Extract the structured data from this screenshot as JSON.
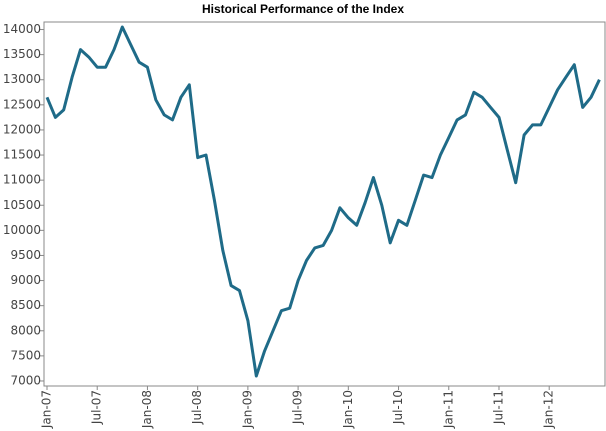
{
  "chart_data": {
    "type": "line",
    "title": "Historical Performance of the Index",
    "x": [
      "Jan-07",
      null,
      null,
      null,
      null,
      null,
      "Jul-07",
      null,
      null,
      null,
      null,
      null,
      "Jan-08",
      null,
      null,
      null,
      null,
      null,
      "Jul-08",
      null,
      null,
      null,
      null,
      null,
      "Jan-09",
      null,
      null,
      null,
      null,
      null,
      "Jul-09",
      null,
      null,
      null,
      null,
      null,
      "Jan-10",
      null,
      null,
      null,
      null,
      null,
      "Jul-10",
      null,
      null,
      null,
      null,
      null,
      "Jan-11",
      null,
      null,
      null,
      null,
      null,
      "Jul-11",
      null,
      null,
      null,
      null,
      null,
      "Jan-12",
      null,
      null,
      null,
      null,
      null,
      null
    ],
    "series": [
      {
        "color": "#1f6b88",
        "values": [
          12650,
          12250,
          12400,
          13050,
          13600,
          13450,
          13250,
          13250,
          13600,
          14050,
          13700,
          13350,
          13250,
          12600,
          12300,
          12200,
          12650,
          12900,
          11450,
          11500,
          10600,
          9600,
          8900,
          8800,
          8200,
          7100,
          7600,
          8000,
          8400,
          8450,
          9000,
          9400,
          9650,
          9700,
          10000,
          10450,
          10250,
          10100,
          10550,
          11050,
          10500,
          9750,
          10200,
          10100,
          10600,
          11100,
          11050,
          11500,
          11850,
          12200,
          12300,
          12750,
          12650,
          12450,
          12250,
          11600,
          10950,
          11900,
          12100,
          12100,
          12450,
          12800,
          13050,
          13300,
          12450,
          12650,
          13000
        ]
      }
    ],
    "ylim": [
      6900,
      14150
    ],
    "yticks": [
      7000,
      7500,
      8000,
      8500,
      9000,
      9500,
      10000,
      10500,
      11000,
      11500,
      12000,
      12500,
      13000,
      13500,
      14000
    ]
  }
}
